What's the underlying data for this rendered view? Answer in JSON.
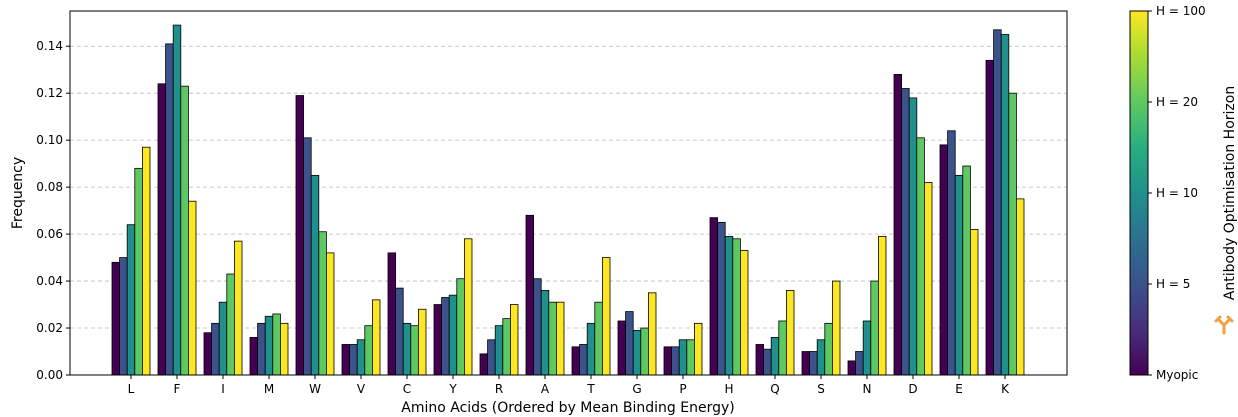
{
  "chart_data": {
    "type": "bar",
    "xlabel": "Amino Acids (Ordered by Mean Binding Energy)",
    "ylabel": "Frequency",
    "ylim": [
      0,
      0.155
    ],
    "yticks": [
      "0.00",
      "0.02",
      "0.04",
      "0.06",
      "0.08",
      "0.10",
      "0.12",
      "0.14"
    ],
    "grid": "horizontal dashed",
    "categories": [
      "L",
      "F",
      "I",
      "M",
      "W",
      "V",
      "C",
      "Y",
      "R",
      "A",
      "T",
      "G",
      "P",
      "H",
      "Q",
      "S",
      "N",
      "D",
      "E",
      "K"
    ],
    "series": [
      {
        "color": "#440154",
        "values": [
          0.048,
          0.124,
          0.018,
          0.016,
          0.119,
          0.013,
          0.052,
          0.03,
          0.009,
          0.068,
          0.012,
          0.023,
          0.012,
          0.067,
          0.013,
          0.01,
          0.006,
          0.128,
          0.098,
          0.134
        ]
      },
      {
        "color": "#3b528b",
        "values": [
          0.05,
          0.141,
          0.022,
          0.022,
          0.101,
          0.013,
          0.037,
          0.033,
          0.015,
          0.041,
          0.013,
          0.027,
          0.012,
          0.065,
          0.011,
          0.01,
          0.01,
          0.122,
          0.104,
          0.147
        ]
      },
      {
        "color": "#21908d",
        "values": [
          0.064,
          0.149,
          0.031,
          0.025,
          0.085,
          0.015,
          0.022,
          0.034,
          0.021,
          0.036,
          0.022,
          0.019,
          0.015,
          0.059,
          0.016,
          0.015,
          0.023,
          0.118,
          0.085,
          0.145
        ]
      },
      {
        "color": "#5ec962",
        "values": [
          0.088,
          0.123,
          0.043,
          0.026,
          0.061,
          0.021,
          0.021,
          0.041,
          0.024,
          0.031,
          0.031,
          0.02,
          0.015,
          0.058,
          0.023,
          0.022,
          0.04,
          0.101,
          0.089,
          0.12
        ]
      },
      {
        "color": "#fde725",
        "values": [
          0.097,
          0.074,
          0.057,
          0.022,
          0.052,
          0.032,
          0.028,
          0.058,
          0.03,
          0.031,
          0.05,
          0.035,
          0.022,
          0.053,
          0.036,
          0.04,
          0.059,
          0.082,
          0.062,
          0.075
        ]
      }
    ],
    "colorbar": {
      "label": "Antibody Optimisation Horizon",
      "ticks": [
        "Myopic",
        "H = 5",
        "H = 10",
        "H = 20",
        "H = 100"
      ],
      "colors": [
        "#440154",
        "#3b528b",
        "#21908d",
        "#5ec962",
        "#fde725"
      ],
      "icon": "antibody-icon",
      "icon_color": "#f0a040"
    }
  }
}
